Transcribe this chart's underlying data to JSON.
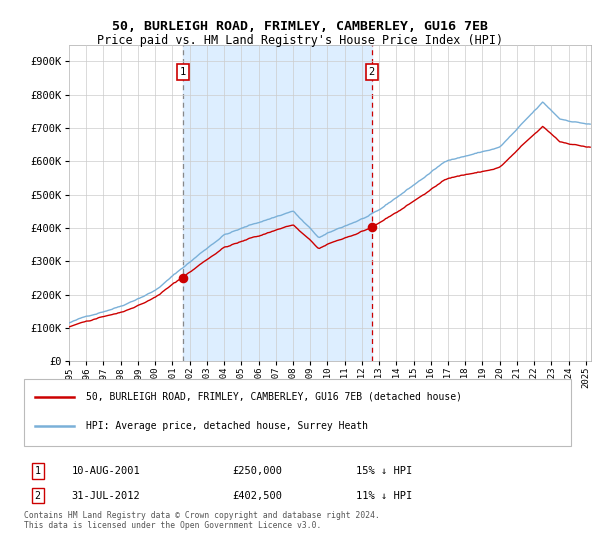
{
  "title1": "50, BURLEIGH ROAD, FRIMLEY, CAMBERLEY, GU16 7EB",
  "title2": "Price paid vs. HM Land Registry's House Price Index (HPI)",
  "legend_line1": "50, BURLEIGH ROAD, FRIMLEY, CAMBERLEY, GU16 7EB (detached house)",
  "legend_line2": "HPI: Average price, detached house, Surrey Heath",
  "event1_date": "10-AUG-2001",
  "event1_price": "£250,000",
  "event1_hpi": "15% ↓ HPI",
  "event2_date": "31-JUL-2012",
  "event2_price": "£402,500",
  "event2_hpi": "11% ↓ HPI",
  "footer": "Contains HM Land Registry data © Crown copyright and database right 2024.\nThis data is licensed under the Open Government Licence v3.0.",
  "hpi_color": "#7ab0d8",
  "price_color": "#cc0000",
  "bg_span_color": "#ddeeff",
  "ylim_min": 0,
  "ylim_max": 950000,
  "xlim_min": 1995,
  "xlim_max": 2025.3,
  "event1_year": 2001.62,
  "event2_year": 2012.58,
  "event1_value": 250000,
  "event2_value": 402500,
  "grid_color": "#cccccc",
  "title1_fontsize": 9.5,
  "title2_fontsize": 8.5
}
